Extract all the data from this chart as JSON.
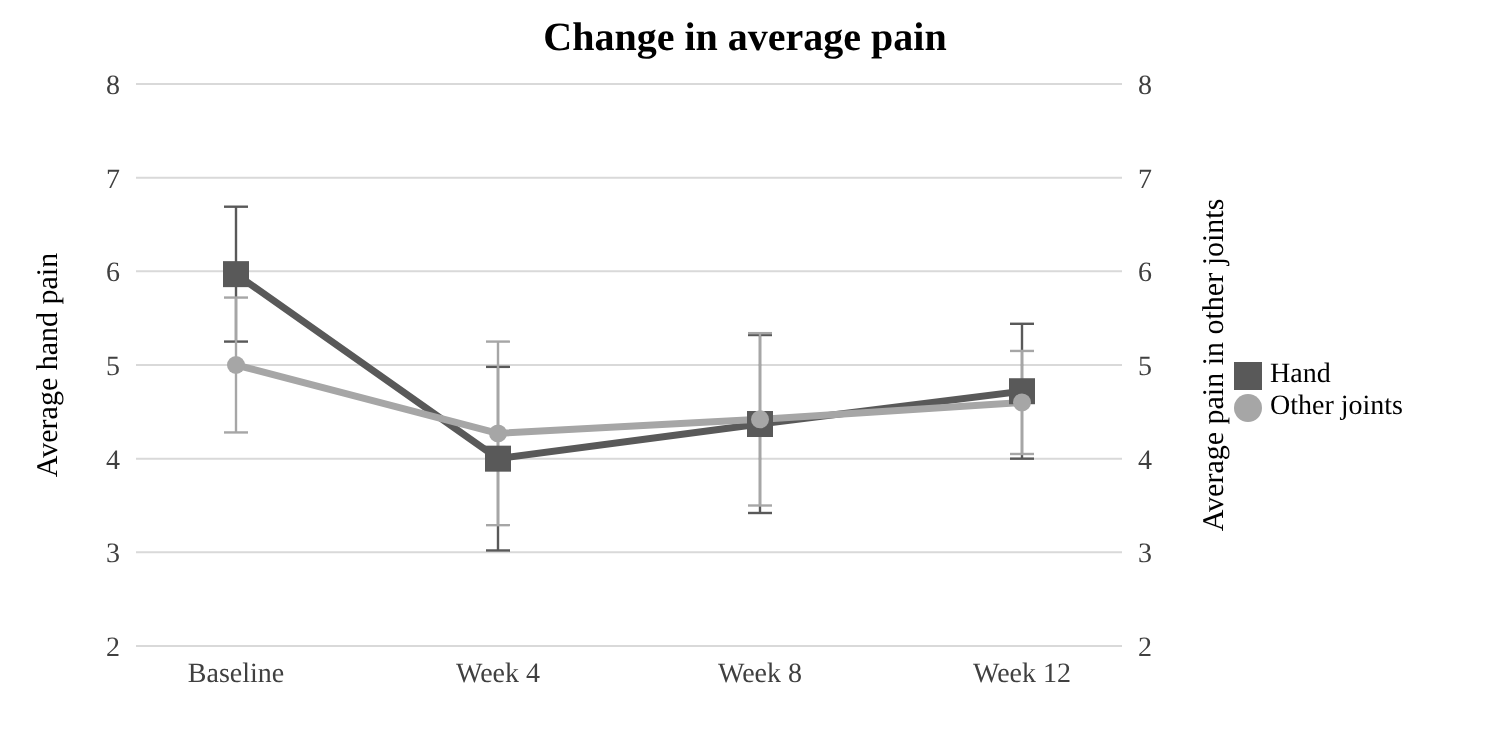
{
  "chart_data": {
    "type": "line",
    "title": "Change in average pain",
    "ylabel": "Average hand pain",
    "y2label": "Average pain in other joints",
    "categories": [
      "Baseline",
      "Week 4",
      "Week 8",
      "Week 12"
    ],
    "series": [
      {
        "name": "Hand",
        "color": "#595959",
        "values": [
          5.97,
          4.0,
          4.37,
          4.72
        ],
        "errors": [
          0.72,
          0.98,
          0.95,
          0.72
        ],
        "marker": "square"
      },
      {
        "name": "Other joints",
        "color": "#a6a6a6",
        "values": [
          5.0,
          4.27,
          4.42,
          4.6
        ],
        "errors": [
          0.72,
          0.98,
          0.92,
          0.55
        ],
        "marker": "circle",
        "axis": "y2"
      }
    ],
    "ylim": [
      2,
      8
    ],
    "yticks": [
      2,
      3,
      4,
      5,
      6,
      7,
      8
    ],
    "y2lim": [
      2,
      8
    ],
    "y2ticks": [
      2,
      3,
      4,
      5,
      6,
      7,
      8
    ],
    "grid": "y",
    "legend": "right"
  }
}
